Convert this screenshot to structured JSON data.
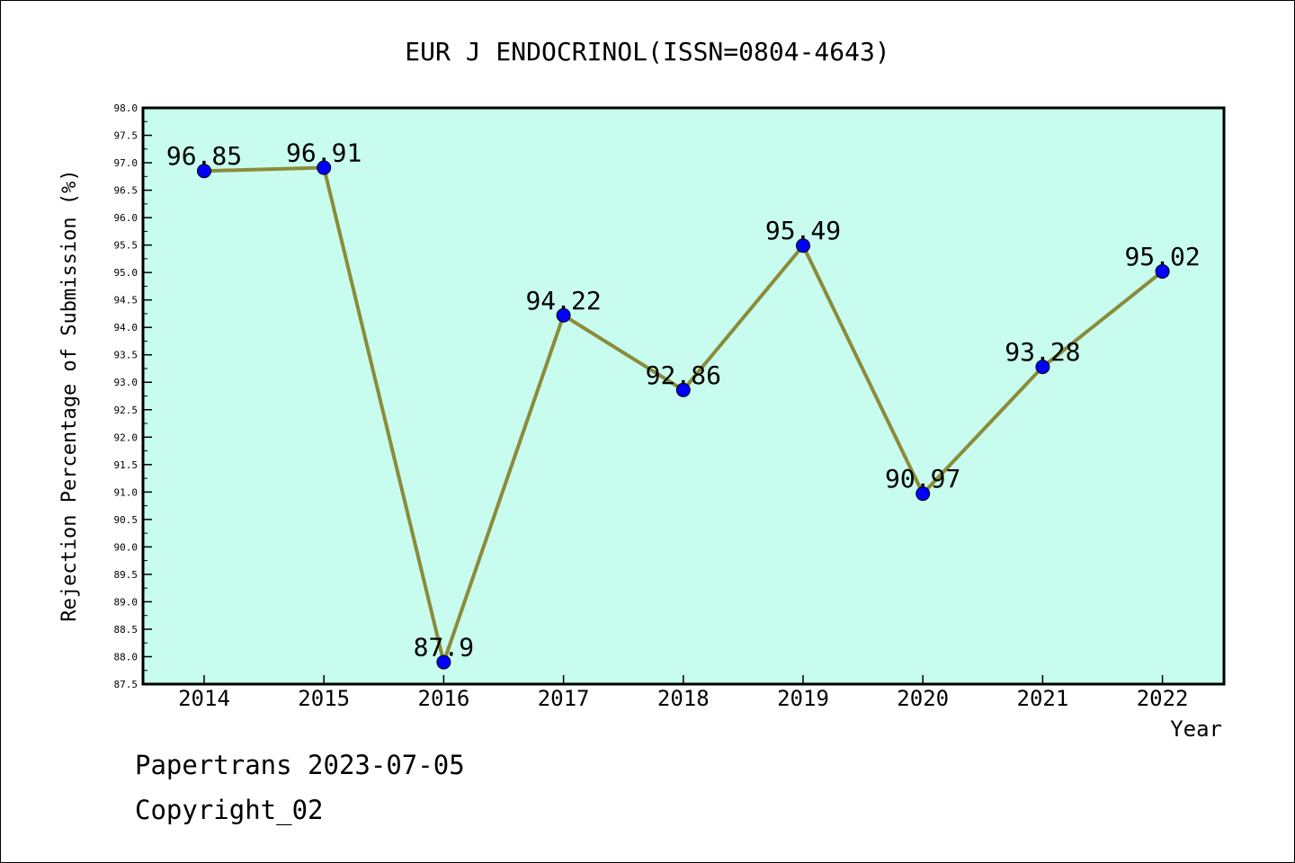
{
  "chart_data": {
    "type": "line",
    "title": "EUR J ENDOCRINOL(ISSN=0804-4643)",
    "xlabel": "Year",
    "ylabel": "Rejection Percentage of Submission (%)",
    "x": [
      "2014",
      "2015",
      "2016",
      "2017",
      "2018",
      "2019",
      "2020",
      "2021",
      "2022"
    ],
    "series": [
      {
        "values": [
          96.85,
          96.91,
          87.9,
          94.22,
          92.86,
          95.49,
          90.97,
          93.28,
          95.02
        ]
      }
    ],
    "data_labels": [
      "96.85",
      "96.91",
      "87.9",
      "94.22",
      "92.86",
      "95.49",
      "90.97",
      "93.28",
      "95.02"
    ],
    "ylim": [
      87.5,
      98.0
    ],
    "yticks": [
      "87.5",
      "88.0",
      "88.5",
      "89.0",
      "89.5",
      "90.0",
      "90.5",
      "91.0",
      "91.5",
      "92.0",
      "92.5",
      "93.0",
      "93.5",
      "94.0",
      "94.5",
      "95.0",
      "95.5",
      "96.0",
      "96.5",
      "97.0",
      "97.5",
      "98.0"
    ],
    "grid": false,
    "legend": "none",
    "colors": {
      "plot_background": "#c8fcee",
      "line": "#8b8b3a",
      "marker": "#0000ff"
    }
  },
  "footer": {
    "line1": "Papertrans 2023-07-05",
    "line2": "Copyright_02"
  }
}
